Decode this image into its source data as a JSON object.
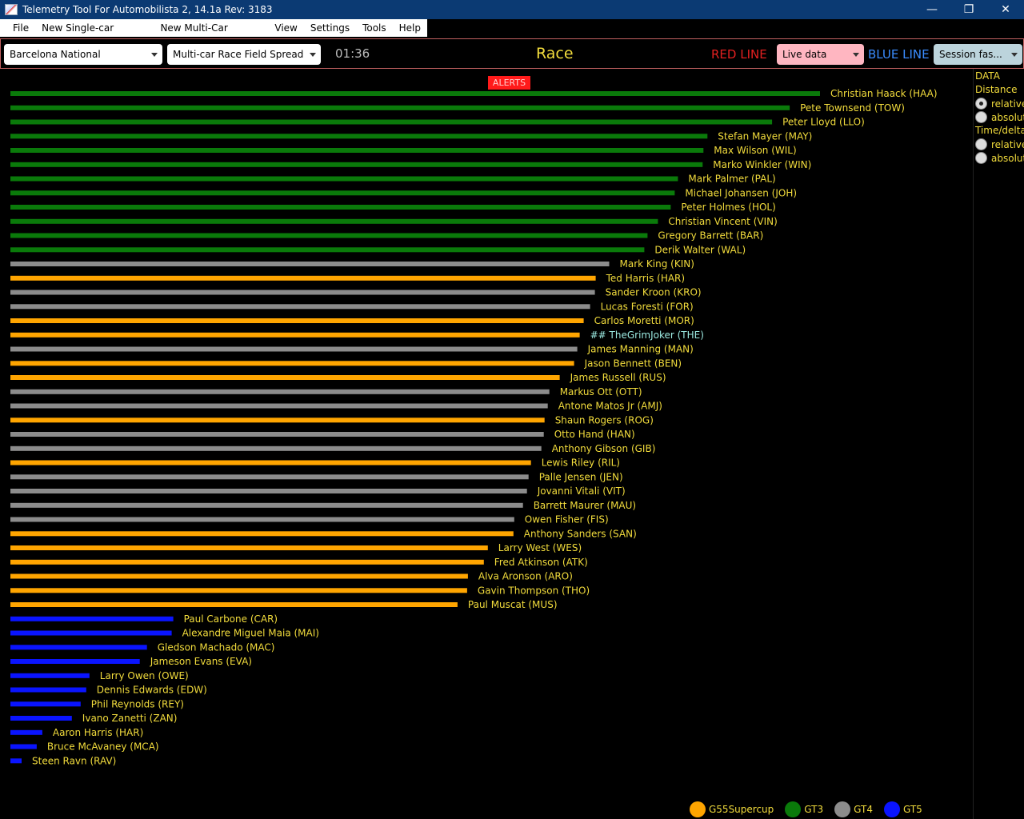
{
  "window": {
    "title": "Telemetry Tool For Automobilista 2, 14.1a Rev: 3183",
    "controls": [
      "—",
      "❐",
      "✕"
    ]
  },
  "menu": [
    "File",
    "New Single-car Window",
    "New Multi-Car Window",
    "View",
    "Settings",
    "Tools",
    "Help"
  ],
  "toolbar": {
    "track": "Barcelona National",
    "view": "Multi-car Race Field Spread",
    "clock": "01:36",
    "session": "Race",
    "red_line_label": "RED LINE",
    "red_line_value": "Live data",
    "blue_line_label": "BLUE LINE",
    "blue_line_value": "Session fas..."
  },
  "alerts_label": "ALERTS",
  "side_panel": {
    "data_label": "DATA",
    "distance_label": "Distance",
    "distance_options": [
      {
        "label": "relative",
        "selected": true
      },
      {
        "label": "absolut",
        "selected": false
      }
    ],
    "time_label": "Time/delta",
    "time_options": [
      {
        "label": "relative",
        "selected": false
      },
      {
        "label": "absolut",
        "selected": false
      }
    ]
  },
  "colors": {
    "G55Supercup": "#ffa500",
    "GT3": "#0a7a0a",
    "GT4": "#8c8c8c",
    "GT5": "#0a14ff",
    "label": "#f2dc3c",
    "player_label": "#9be8e0"
  },
  "legend": [
    {
      "class": "G55Supercup",
      "label": "G55Supercup"
    },
    {
      "class": "GT3",
      "label": "GT3"
    },
    {
      "class": "GT4",
      "label": "GT4"
    },
    {
      "class": "GT5",
      "label": "GT5"
    }
  ],
  "chart_data": {
    "type": "bar",
    "orientation": "horizontal",
    "bar_scale_max": 1016,
    "series": [
      {
        "name": "Christian Haack (HAA)",
        "class": "GT3",
        "value": 1014
      },
      {
        "name": "Pete Townsend (TOW)",
        "class": "GT3",
        "value": 976
      },
      {
        "name": "Peter Lloyd (LLO)",
        "class": "GT3",
        "value": 954
      },
      {
        "name": "Stefan Mayer (MAY)",
        "class": "GT3",
        "value": 873
      },
      {
        "name": "Max Wilson (WIL)",
        "class": "GT3",
        "value": 868
      },
      {
        "name": "Marko Winkler (WIN)",
        "class": "GT3",
        "value": 867
      },
      {
        "name": "Mark Palmer (PAL)",
        "class": "GT3",
        "value": 836
      },
      {
        "name": "Michael Johansen (JOH)",
        "class": "GT3",
        "value": 832
      },
      {
        "name": "Peter Holmes (HOL)",
        "class": "GT3",
        "value": 827
      },
      {
        "name": "Christian Vincent (VIN)",
        "class": "GT3",
        "value": 811
      },
      {
        "name": "Gregory Barrett (BAR)",
        "class": "GT3",
        "value": 798
      },
      {
        "name": "Derik Walter (WAL)",
        "class": "GT3",
        "value": 794
      },
      {
        "name": "Mark King (KIN)",
        "class": "GT4",
        "value": 750
      },
      {
        "name": "Ted Harris (HAR)",
        "class": "G55Supercup",
        "value": 733
      },
      {
        "name": "Sander Kroon (KRO)",
        "class": "GT4",
        "value": 732
      },
      {
        "name": "Lucas Foresti (FOR)",
        "class": "GT4",
        "value": 726
      },
      {
        "name": "Carlos Moretti (MOR)",
        "class": "G55Supercup",
        "value": 718
      },
      {
        "name": "## TheGrimJoker (THE)",
        "class": "G55Supercup",
        "value": 713,
        "player": true
      },
      {
        "name": "James Manning (MAN)",
        "class": "GT4",
        "value": 710
      },
      {
        "name": "Jason Bennett (BEN)",
        "class": "G55Supercup",
        "value": 706
      },
      {
        "name": "James Russell (RUS)",
        "class": "G55Supercup",
        "value": 688
      },
      {
        "name": "Markus Ott (OTT)",
        "class": "GT4",
        "value": 675
      },
      {
        "name": "Antone Matos Jr (AMJ)",
        "class": "GT4",
        "value": 673
      },
      {
        "name": "Shaun Rogers (ROG)",
        "class": "G55Supercup",
        "value": 669
      },
      {
        "name": "Otto Hand (HAN)",
        "class": "GT4",
        "value": 668
      },
      {
        "name": "Anthony Gibson (GIB)",
        "class": "GT4",
        "value": 665
      },
      {
        "name": "Lewis Riley (RIL)",
        "class": "G55Supercup",
        "value": 652
      },
      {
        "name": "Palle Jensen (JEN)",
        "class": "GT4",
        "value": 649
      },
      {
        "name": "Jovanni Vitali (VIT)",
        "class": "GT4",
        "value": 647
      },
      {
        "name": "Barrett Maurer (MAU)",
        "class": "GT4",
        "value": 642
      },
      {
        "name": "Owen Fisher (FIS)",
        "class": "GT4",
        "value": 631
      },
      {
        "name": "Anthony Sanders (SAN)",
        "class": "G55Supercup",
        "value": 630
      },
      {
        "name": "Larry West (WES)",
        "class": "G55Supercup",
        "value": 598
      },
      {
        "name": "Fred Atkinson (ATK)",
        "class": "G55Supercup",
        "value": 593
      },
      {
        "name": "Alva Aronson (ARO)",
        "class": "G55Supercup",
        "value": 573
      },
      {
        "name": "Gavin Thompson (THO)",
        "class": "G55Supercup",
        "value": 572
      },
      {
        "name": "Paul Muscat (MUS)",
        "class": "G55Supercup",
        "value": 560
      },
      {
        "name": "Paul Carbone (CAR)",
        "class": "GT5",
        "value": 204
      },
      {
        "name": "Alexandre Miguel Maia (MAI)",
        "class": "GT5",
        "value": 202
      },
      {
        "name": "Gledson Machado (MAC)",
        "class": "GT5",
        "value": 171
      },
      {
        "name": "Jameson Evans (EVA)",
        "class": "GT5",
        "value": 162
      },
      {
        "name": "Larry Owen (OWE)",
        "class": "GT5",
        "value": 99
      },
      {
        "name": "Dennis Edwards (EDW)",
        "class": "GT5",
        "value": 95
      },
      {
        "name": "Phil Reynolds (REY)",
        "class": "GT5",
        "value": 88
      },
      {
        "name": "Ivano Zanetti (ZAN)",
        "class": "GT5",
        "value": 77
      },
      {
        "name": "Aaron Harris (HAR)",
        "class": "GT5",
        "value": 40
      },
      {
        "name": "Bruce McAvaney (MCA)",
        "class": "GT5",
        "value": 33
      },
      {
        "name": "Steen Ravn (RAV)",
        "class": "GT5",
        "value": 14
      }
    ]
  }
}
